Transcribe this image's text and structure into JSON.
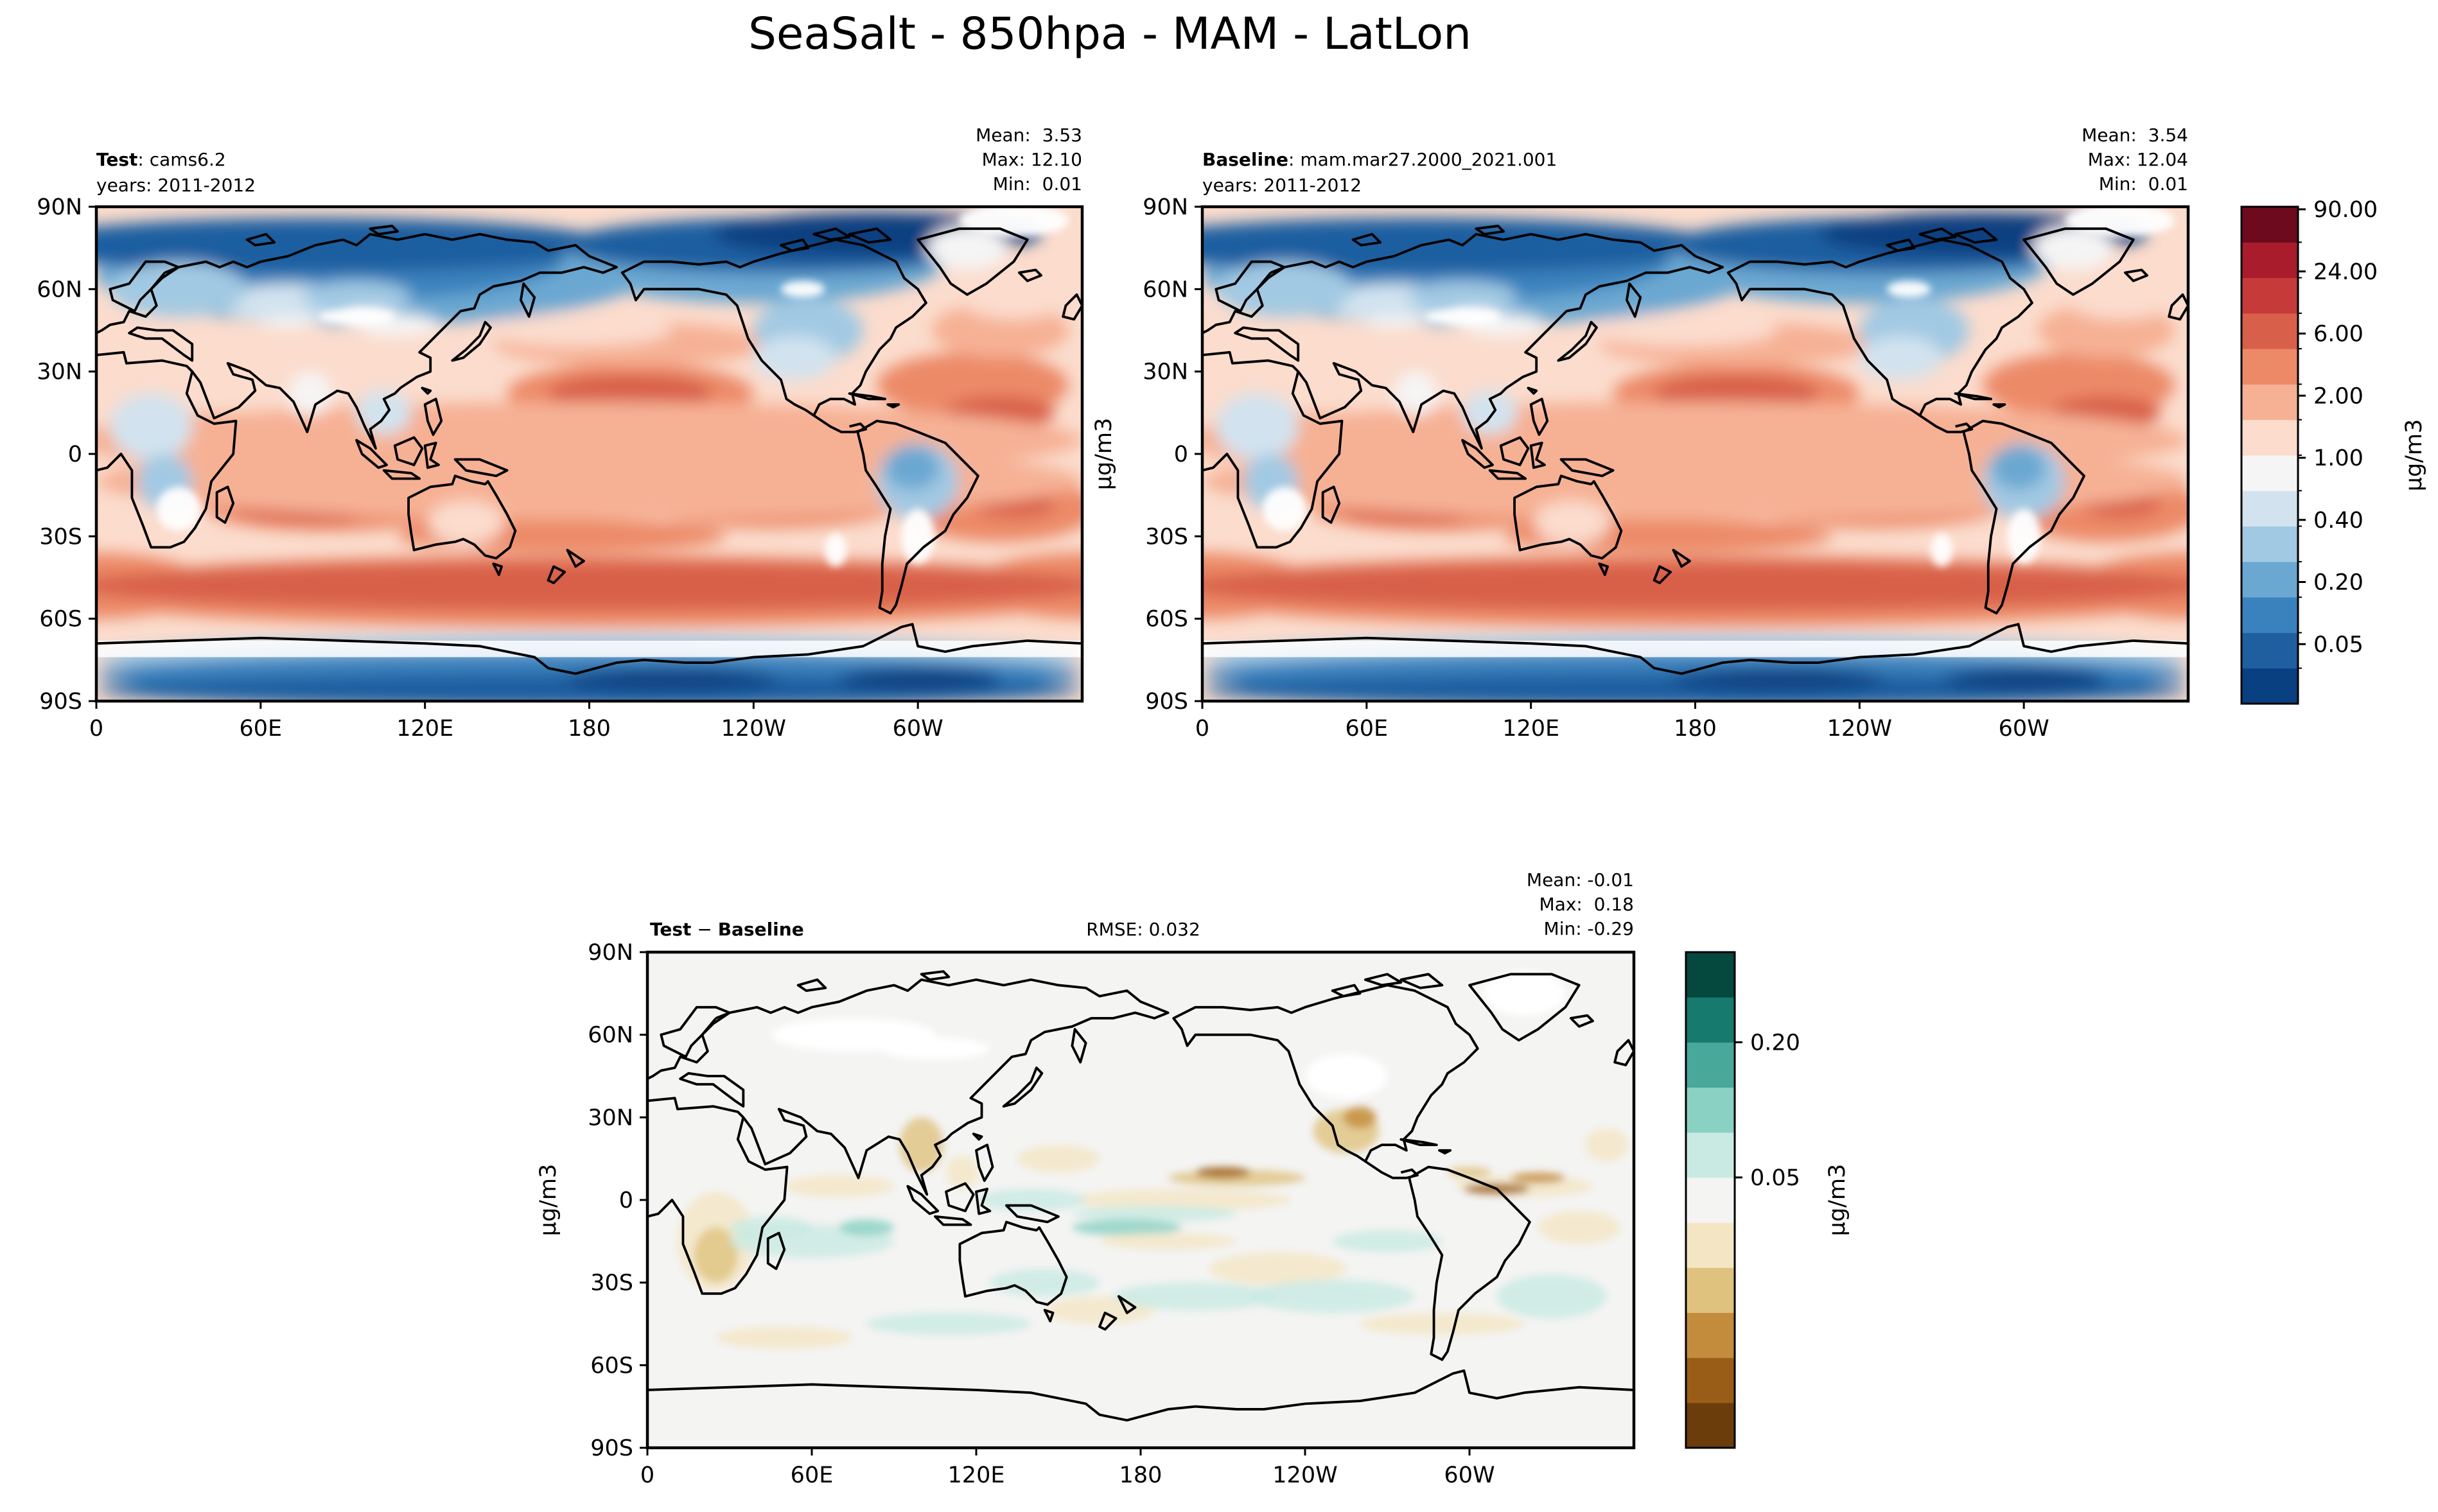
{
  "figure_title": "SeaSalt - 850hpa - MAM - LatLon",
  "colors": {
    "ocean_light": "#f4f4f3",
    "coast": "#000000"
  },
  "chart_data": [
    {
      "type": "heatmap",
      "name": "test",
      "label_bold": "Test",
      "label_rest": ": cams6.2",
      "years": "years: 2011-2012",
      "stats": [
        "Mean:  3.53",
        "Max: 12.10",
        "Min:  0.01"
      ],
      "mean": 3.53,
      "max": 12.1,
      "min": 0.01,
      "xticks": [
        "0",
        "60E",
        "120E",
        "180",
        "120W",
        "60W"
      ],
      "yticks": [
        "90N",
        "60N",
        "30N",
        "0",
        "30S",
        "60S",
        "90S"
      ],
      "ylabel": "μg/m3",
      "field": "seasalt"
    },
    {
      "type": "heatmap",
      "name": "baseline",
      "label_bold": "Baseline",
      "label_rest": ": mam.mar27.2000_2021.001",
      "years": "years: 2011-2012",
      "stats": [
        "Mean:  3.54",
        "Max: 12.04",
        "Min:  0.01"
      ],
      "mean": 3.54,
      "max": 12.04,
      "min": 0.01,
      "xticks": [
        "0",
        "60E",
        "120E",
        "180",
        "120W",
        "60W"
      ],
      "yticks": [
        "90N",
        "60N",
        "30N",
        "0",
        "30S",
        "60S",
        "90S"
      ],
      "field": "seasalt"
    },
    {
      "type": "heatmap",
      "name": "diff",
      "label_bold": "Test",
      "label_mid": " − ",
      "label_bold2": "Baseline",
      "rmse": "RMSE: 0.032",
      "stats": [
        "Mean: -0.01",
        "Max:  0.18",
        "Min: -0.29"
      ],
      "mean": -0.01,
      "max": 0.18,
      "min": -0.29,
      "xticks": [
        "0",
        "60E",
        "120E",
        "180",
        "120W",
        "60W"
      ],
      "yticks": [
        "90N",
        "60N",
        "30N",
        "0",
        "30S",
        "60S",
        "90S"
      ],
      "ylabel": "μg/m3",
      "field": "diff"
    }
  ],
  "colorbar_main": {
    "label": "μg/m3",
    "ticks": [
      "90.00",
      "24.00",
      "6.00",
      "2.00",
      "1.00",
      "0.40",
      "0.20",
      "0.05"
    ],
    "colors": [
      "#084081",
      "#1f5fa0",
      "#3a82bd",
      "#6aa7d1",
      "#a2c9e3",
      "#d2e3ef",
      "#f5f5f5",
      "#fbdccd",
      "#f6b194",
      "#ec8a68",
      "#d8604a",
      "#c63a3a",
      "#a81c2c",
      "#6e0a1e"
    ]
  },
  "colorbar_diff": {
    "label": "μg/m3",
    "ticks": [
      "0.20",
      "0.05"
    ],
    "colors": [
      "#6b3d0b",
      "#9a5d18",
      "#c38c3c",
      "#dfc27e",
      "#f4e6c4",
      "#f4f4f3",
      "#c8eae2",
      "#8bd1c3",
      "#48a89a",
      "#177a6e",
      "#05483e"
    ]
  }
}
